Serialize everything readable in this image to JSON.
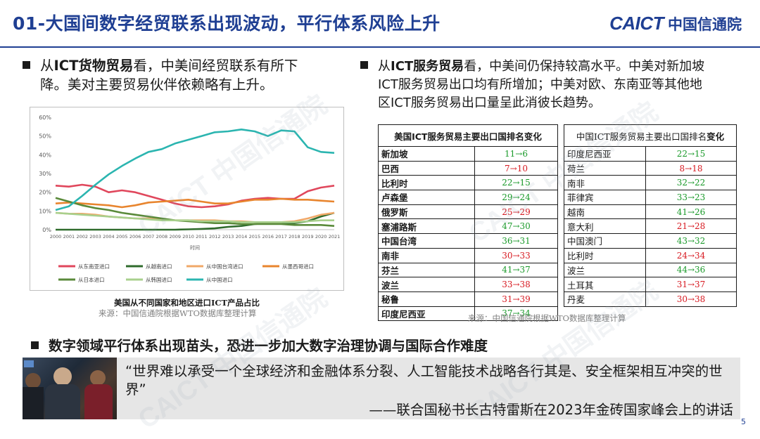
{
  "header": {
    "title": "01-大国间数字经贸联系出现波动，平行体系风险上升",
    "logo_en": "CAICT",
    "logo_cn": "中国信通院"
  },
  "left_bullet": {
    "prefix": "从",
    "bold": "ICT货物贸易",
    "line1_rest": "看，中美间经贸联系有所下",
    "line2": "降。美对主要贸易伙伴依赖略有上升。"
  },
  "right_bullet": {
    "prefix": "从",
    "bold": "ICT服务贸易",
    "line1_rest": "看，中美间仍保持较高水平。中美对新加坡",
    "line2": "ICT服务贸易出口均有所增加；中美对欧、东南亚等其他地",
    "line3": "区ICT服务贸易出口量呈此消彼长趋势。"
  },
  "chart_data": {
    "type": "line",
    "title": "美国从不同国家和地区进口ICT产品占比",
    "xlabel": "时间",
    "ylabel": "",
    "ylim": [
      0,
      60
    ],
    "yticks": [
      "0%",
      "10%",
      "20%",
      "30%",
      "40%",
      "50%",
      "60%"
    ],
    "x": [
      "2000",
      "2001",
      "2002",
      "2003",
      "2004",
      "2005",
      "2006",
      "2007",
      "2008",
      "2009",
      "2010",
      "2011",
      "2012",
      "2013",
      "2014",
      "2015",
      "2016",
      "2017",
      "2018",
      "2019",
      "2020",
      "2021"
    ],
    "series": [
      {
        "name": "从东南亚进口",
        "color": "#e0475c",
        "values": [
          23.5,
          23,
          24,
          23,
          20,
          21,
          20,
          18,
          16,
          14,
          12.5,
          12,
          12.5,
          13.5,
          15.5,
          16.5,
          17,
          16.5,
          16.5,
          20.5,
          22.5,
          23.5
        ]
      },
      {
        "name": "从越南进口",
        "color": "#2f6b2c",
        "values": [
          0,
          0,
          0,
          0,
          0,
          0,
          0,
          0,
          0,
          0,
          0.2,
          0.4,
          0.7,
          1.5,
          2,
          3,
          3.5,
          3.5,
          3.5,
          4.5,
          7,
          9
        ]
      },
      {
        "name": "从中国台湾进口",
        "color": "#f0a868",
        "values": [
          9,
          8.5,
          8.5,
          8,
          7,
          6.5,
          6,
          6,
          5.5,
          5,
          5,
          5,
          5,
          4.5,
          4.5,
          4,
          4,
          4,
          4.5,
          6,
          8,
          9
        ]
      },
      {
        "name": "从墨西哥进口",
        "color": "#e8852e",
        "values": [
          14,
          14.5,
          14,
          13.5,
          13,
          12,
          13,
          14.5,
          15,
          15.5,
          16,
          15,
          14,
          14,
          15,
          16,
          16,
          16.5,
          16,
          16,
          15.5,
          15
        ]
      },
      {
        "name": "从日本进口",
        "color": "#5a8a3a",
        "values": [
          17,
          15,
          13,
          11.5,
          10.5,
          9,
          8,
          7,
          6,
          5,
          4.5,
          4,
          3.5,
          3.5,
          3,
          3,
          3,
          3,
          2.5,
          2.5,
          2.5,
          2
        ]
      },
      {
        "name": "从韩国进口",
        "color": "#a8d08d",
        "values": [
          9,
          8.5,
          8,
          7.5,
          7,
          6.5,
          6,
          5.5,
          5,
          5,
          5,
          4.5,
          4.5,
          4.5,
          4,
          4,
          4,
          4,
          4,
          4.5,
          5,
          5
        ]
      },
      {
        "name": "从中国进口",
        "color": "#2bb5b0",
        "values": [
          10.5,
          12.5,
          18,
          24,
          29.5,
          34,
          38,
          41.5,
          43,
          46,
          48,
          50,
          52,
          52.5,
          53.5,
          52.5,
          50,
          53,
          52.5,
          44,
          41.5,
          41
        ]
      }
    ],
    "legend": "bottom",
    "source": "来源：中国信通院根据WTO数据库整理计算"
  },
  "table_us": {
    "header": "美国ICT服务贸易主要出口国排名变化",
    "rows": [
      {
        "name": "新加坡",
        "change": "11→6",
        "trend": "up"
      },
      {
        "name": "巴西",
        "change": "7→10",
        "trend": "down"
      },
      {
        "name": "比利时",
        "change": "22→15",
        "trend": "up"
      },
      {
        "name": "卢森堡",
        "change": "29→24",
        "trend": "up"
      },
      {
        "name": "俄罗斯",
        "change": "25→29",
        "trend": "down"
      },
      {
        "name": "塞浦路斯",
        "change": "47→30",
        "trend": "up"
      },
      {
        "name": "中国台湾",
        "change": "36→31",
        "trend": "up"
      },
      {
        "name": "南非",
        "change": "30→33",
        "trend": "down"
      },
      {
        "name": "芬兰",
        "change": "41→37",
        "trend": "up"
      },
      {
        "name": "波兰",
        "change": "33→38",
        "trend": "down"
      },
      {
        "name": "秘鲁",
        "change": "31→39",
        "trend": "down"
      },
      {
        "name": "印度尼西亚",
        "change": "37→34",
        "trend": "up"
      }
    ]
  },
  "table_cn": {
    "header_prefix": "中国ICT服务贸易主要出口国排名",
    "header_suffix": "变化",
    "rows": [
      {
        "name": "印度尼西亚",
        "change": "22→15",
        "trend": "up"
      },
      {
        "name": "荷兰",
        "change": "8→18",
        "trend": "down"
      },
      {
        "name": "南非",
        "change": "32→22",
        "trend": "up"
      },
      {
        "name": "菲律宾",
        "change": "33→23",
        "trend": "up"
      },
      {
        "name": "越南",
        "change": "41→26",
        "trend": "up"
      },
      {
        "name": "意大利",
        "change": "21→28",
        "trend": "down"
      },
      {
        "name": "中国澳门",
        "change": "43→32",
        "trend": "up"
      },
      {
        "name": "比利时",
        "change": "24→34",
        "trend": "down"
      },
      {
        "name": "波兰",
        "change": "44→36",
        "trend": "up"
      },
      {
        "name": "土耳其",
        "change": "31→37",
        "trend": "down"
      },
      {
        "name": "丹麦",
        "change": "30→38",
        "trend": "down"
      }
    ]
  },
  "table_source": "来源：中国信通院根据WTO数据库整理计算",
  "bottom_bullet": "数字领域平行体系出现苗头，恐进一步加大数字治理协调与国际合作难度",
  "quote": {
    "text": "“世界难以承受一个全球经济和金融体系分裂、人工智能技术战略各行其是、安全框架相互冲突的世界”",
    "attribution": "——联合国秘书长古特雷斯在2023年金砖国家峰会上的讲话"
  },
  "page_number": "5",
  "watermark": "CAICT 中国信通院"
}
